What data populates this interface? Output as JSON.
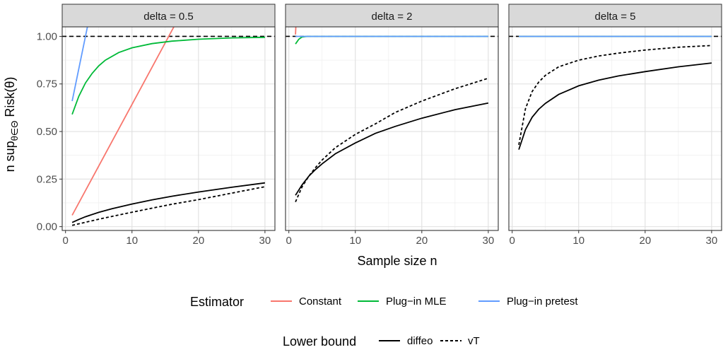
{
  "chart_data": {
    "type": "line",
    "facet_titles": [
      "delta = 0.5",
      "delta = 2",
      "delta = 5"
    ],
    "xlabel": "Sample size n",
    "ylabel_prefix": "n sup",
    "ylabel_subscript": "θ∈Θ",
    "ylabel_suffix": " Risk(θ)",
    "xlim": [
      -0.5,
      31.5
    ],
    "ylim": [
      -0.02,
      1.05
    ],
    "x_ticks": [
      0,
      10,
      20,
      30
    ],
    "x_tick_labels": [
      "0",
      "10",
      "20",
      "30"
    ],
    "y_ticks": [
      0,
      0.25,
      0.5,
      0.75,
      1.0
    ],
    "y_tick_labels": [
      "0.00",
      "0.25",
      "0.50",
      "0.75",
      "1.00"
    ],
    "reference_line": 1.0,
    "grid": true,
    "legend": {
      "estimator": {
        "title": "Estimator",
        "items": [
          {
            "label": "Constant",
            "color": "#F8766D"
          },
          {
            "label": "Plug−in MLE",
            "color": "#00BA38"
          },
          {
            "label": "Plug−in pretest",
            "color": "#619CFF"
          }
        ]
      },
      "lower_bound": {
        "title": "Lower bound",
        "items": [
          {
            "label": "diffeo",
            "linetype": "solid"
          },
          {
            "label": "vT",
            "linetype": "dashed"
          }
        ]
      }
    },
    "panels": [
      {
        "title": "delta = 0.5",
        "estimators": [
          {
            "name": "Constant",
            "color": "#F8766D",
            "x": [
              1,
              16.3
            ],
            "y": [
              0.06,
              1.05
            ]
          },
          {
            "name": "Plug−in MLE",
            "color": "#00BA38",
            "x": [
              1,
              2,
              3,
              4,
              5,
              6,
              8,
              10,
              13,
              16,
              20,
              25,
              30
            ],
            "y": [
              0.59,
              0.685,
              0.755,
              0.805,
              0.845,
              0.875,
              0.915,
              0.94,
              0.962,
              0.975,
              0.985,
              0.992,
              0.995
            ]
          },
          {
            "name": "Plug−in pretest",
            "color": "#619CFF",
            "x": [
              1,
              3.3
            ],
            "y": [
              0.66,
              1.05
            ]
          }
        ],
        "bounds": [
          {
            "name": "diffeo",
            "linetype": "solid",
            "x": [
              1,
              2,
              3,
              5,
              7,
              10,
              13,
              16,
              20,
              25,
              30
            ],
            "y": [
              0.022,
              0.038,
              0.052,
              0.075,
              0.094,
              0.119,
              0.141,
              0.16,
              0.182,
              0.207,
              0.23
            ]
          },
          {
            "name": "vT",
            "linetype": "dashed",
            "x": [
              1,
              2,
              3,
              5,
              7,
              10,
              13,
              16,
              20,
              25,
              30
            ],
            "y": [
              0.007,
              0.015,
              0.023,
              0.039,
              0.054,
              0.076,
              0.097,
              0.118,
              0.142,
              0.176,
              0.21
            ]
          }
        ]
      },
      {
        "title": "delta = 2",
        "estimators": [
          {
            "name": "Constant",
            "color": "#F8766D",
            "x": [
              1,
              1.05
            ],
            "y": [
              1.01,
              1.05
            ]
          },
          {
            "name": "Plug−in MLE",
            "color": "#00BA38",
            "x": [
              1,
              1.5,
              2,
              2.5,
              3,
              30
            ],
            "y": [
              0.96,
              0.985,
              0.997,
              0.999,
              1.0,
              1.0
            ]
          },
          {
            "name": "Plug−in pretest",
            "color": "#619CFF",
            "x": [
              1,
              30
            ],
            "y": [
              1.0,
              1.0
            ]
          }
        ],
        "bounds": [
          {
            "name": "diffeo",
            "linetype": "solid",
            "x": [
              1,
              2,
              3,
              4,
              5,
              7,
              10,
              13,
              16,
              20,
              25,
              30
            ],
            "y": [
              0.165,
              0.22,
              0.265,
              0.3,
              0.33,
              0.383,
              0.44,
              0.49,
              0.527,
              0.57,
              0.615,
              0.65
            ]
          },
          {
            "name": "vT",
            "linetype": "dashed",
            "x": [
              1,
              2,
              3,
              4,
              5,
              7,
              10,
              13,
              16,
              20,
              25,
              30
            ],
            "y": [
              0.13,
              0.21,
              0.265,
              0.31,
              0.35,
              0.415,
              0.485,
              0.54,
              0.6,
              0.66,
              0.725,
              0.78
            ]
          }
        ]
      },
      {
        "title": "delta = 5",
        "estimators": [
          {
            "name": "Constant",
            "color": "#F8766D",
            "x": [
              1,
              30
            ],
            "y": [
              1.0,
              1.0
            ]
          },
          {
            "name": "Plug−in MLE",
            "color": "#00BA38",
            "x": [
              1,
              30
            ],
            "y": [
              1.0,
              1.0
            ]
          },
          {
            "name": "Plug−in pretest",
            "color": "#619CFF",
            "x": [
              1,
              30
            ],
            "y": [
              1.0,
              1.0
            ]
          }
        ],
        "bounds": [
          {
            "name": "diffeo",
            "linetype": "solid",
            "x": [
              1,
              2,
              3,
              4,
              5,
              7,
              10,
              13,
              16,
              20,
              25,
              30
            ],
            "y": [
              0.405,
              0.51,
              0.575,
              0.617,
              0.648,
              0.695,
              0.74,
              0.77,
              0.792,
              0.815,
              0.84,
              0.86
            ]
          },
          {
            "name": "vT",
            "linetype": "dashed",
            "x": [
              1,
              2,
              3,
              4,
              5,
              7,
              10,
              13,
              16,
              20,
              25,
              30
            ],
            "y": [
              0.43,
              0.62,
              0.71,
              0.76,
              0.795,
              0.84,
              0.875,
              0.897,
              0.912,
              0.928,
              0.943,
              0.952
            ]
          }
        ]
      }
    ]
  }
}
